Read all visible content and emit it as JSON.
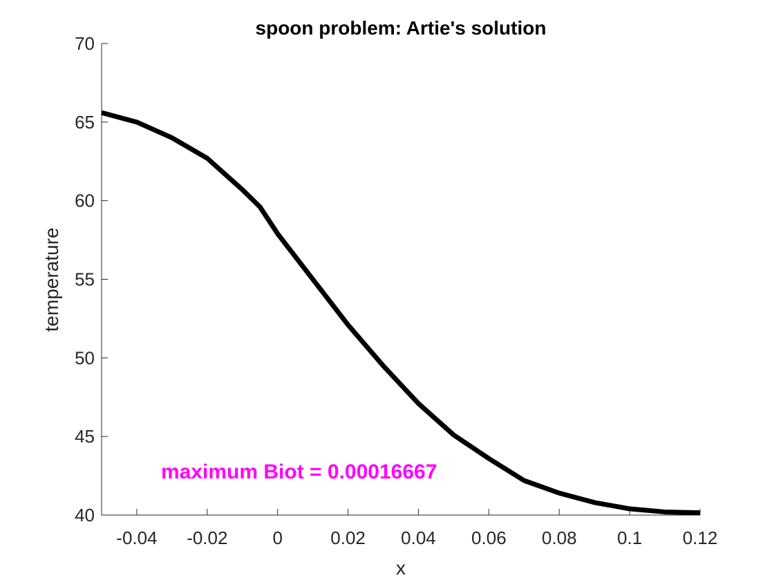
{
  "chart_data": {
    "type": "line",
    "title": "spoon problem: Artie's solution",
    "xlabel": "x",
    "ylabel": "temperature",
    "annotation": "maximum Biot = 0.00016667",
    "annotation_color": "#ff00ff",
    "x": [
      -0.05,
      -0.04,
      -0.03,
      -0.02,
      -0.01,
      -0.005,
      0,
      0.01,
      0.02,
      0.03,
      0.04,
      0.05,
      0.06,
      0.07,
      0.08,
      0.09,
      0.1,
      0.11,
      0.12
    ],
    "series": [
      {
        "name": "temperature",
        "color": "#000000",
        "values": [
          65.6,
          65.0,
          64.0,
          62.7,
          60.7,
          59.6,
          57.9,
          55.0,
          52.1,
          49.5,
          47.1,
          45.1,
          43.6,
          42.2,
          41.4,
          40.8,
          40.4,
          40.2,
          40.15
        ]
      }
    ],
    "xlim": [
      -0.05,
      0.12
    ],
    "ylim": [
      40,
      70
    ],
    "xticks": [
      -0.04,
      -0.02,
      0,
      0.02,
      0.04,
      0.06,
      0.08,
      0.1,
      0.12
    ],
    "yticks": [
      40,
      45,
      50,
      55,
      60,
      65,
      70
    ],
    "grid": false
  }
}
